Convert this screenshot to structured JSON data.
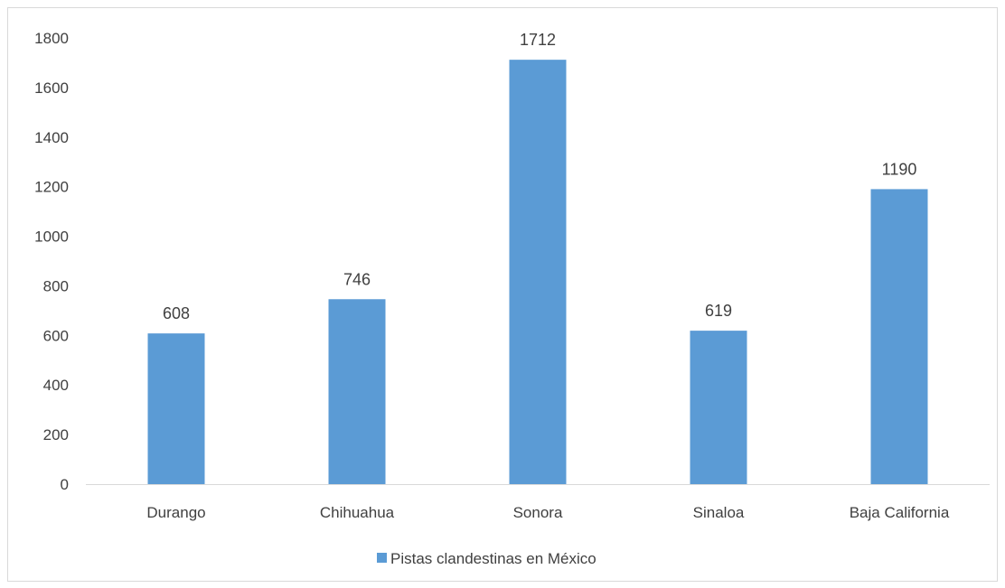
{
  "chart_data": {
    "type": "bar",
    "categories": [
      "Durango",
      "Chihuahua",
      "Sonora",
      "Sinaloa",
      "Baja California"
    ],
    "series": [
      {
        "name": "Pistas clandestinas en México",
        "values": [
          608,
          746,
          1712,
          619,
          1190
        ],
        "color": "#5b9bd5"
      }
    ],
    "data_labels": [
      "608",
      "746",
      "1712",
      "619",
      "1190"
    ],
    "y_ticks": [
      "0",
      "200",
      "400",
      "600",
      "800",
      "1000",
      "1200",
      "1400",
      "1600",
      "1800"
    ],
    "ylim": [
      0,
      1800
    ],
    "title": "",
    "xlabel": "",
    "ylabel": "",
    "grid": false,
    "legend": "bottom"
  }
}
